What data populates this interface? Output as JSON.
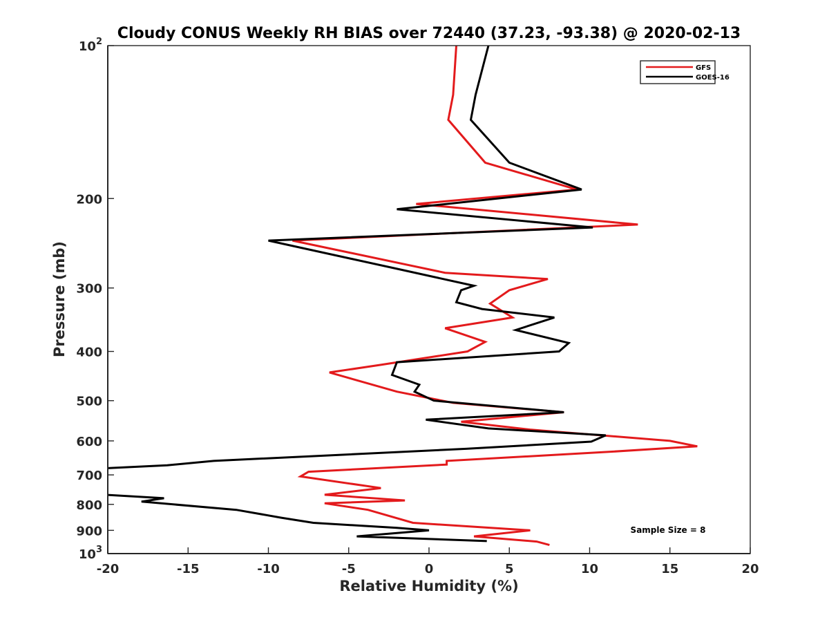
{
  "chart_data": {
    "type": "line",
    "title": "Cloudy CONUS Weekly RH BIAS over 72440 (37.23, -93.38) @ 2020-02-13",
    "xlabel": "Relative Humidity (%)",
    "ylabel": "Pressure (mb)",
    "xlim": [
      -20,
      20
    ],
    "ylim": [
      100,
      1000
    ],
    "yscale": "log",
    "y_reversed": true,
    "x_ticks": [
      "-20",
      "-15",
      "-10",
      "-5",
      "0",
      "5",
      "10",
      "15",
      "20"
    ],
    "y_ticks": [
      {
        "value": 100,
        "base": "10",
        "exp": "2"
      },
      {
        "value": 200,
        "label": "200"
      },
      {
        "value": 300,
        "label": "300"
      },
      {
        "value": 400,
        "label": "400"
      },
      {
        "value": 500,
        "label": "500"
      },
      {
        "value": 600,
        "label": "600"
      },
      {
        "value": 700,
        "label": "700"
      },
      {
        "value": 800,
        "label": "800"
      },
      {
        "value": 900,
        "label": "900"
      },
      {
        "value": 1000,
        "base": "10",
        "exp": "3"
      }
    ],
    "grid": false,
    "legend_position": "top-right",
    "annotation": "Sample Size = 8",
    "series": [
      {
        "name": "GFS",
        "color": "#e31a1c",
        "points": [
          [
            1.7,
            100
          ],
          [
            1.5,
            125
          ],
          [
            1.2,
            140
          ],
          [
            3.5,
            170
          ],
          [
            9.2,
            192
          ],
          [
            -0.8,
            205
          ],
          [
            13.0,
            225
          ],
          [
            -8.5,
            242
          ],
          [
            1.0,
            280
          ],
          [
            7.4,
            288
          ],
          [
            5.0,
            303
          ],
          [
            3.8,
            322
          ],
          [
            5.2,
            343
          ],
          [
            1.0,
            360
          ],
          [
            3.5,
            383
          ],
          [
            2.4,
            400
          ],
          [
            -3.0,
            425
          ],
          [
            -6.2,
            440
          ],
          [
            -2.0,
            480
          ],
          [
            1.5,
            505
          ],
          [
            8.4,
            527
          ],
          [
            2.0,
            550
          ],
          [
            6.3,
            570
          ],
          [
            15.0,
            600
          ],
          [
            16.7,
            615
          ],
          [
            11.4,
            630
          ],
          [
            1.1,
            657
          ],
          [
            1.1,
            668
          ],
          [
            -7.5,
            690
          ],
          [
            -8.0,
            705
          ],
          [
            -3.0,
            743
          ],
          [
            -6.5,
            766
          ],
          [
            -1.5,
            786
          ],
          [
            -6.5,
            796
          ],
          [
            -3.8,
            820
          ],
          [
            -1.0,
            870
          ],
          [
            6.3,
            900
          ],
          [
            2.8,
            925
          ],
          [
            6.7,
            947
          ],
          [
            7.5,
            962
          ]
        ]
      },
      {
        "name": "GOES-16",
        "color": "#000000",
        "points": [
          [
            3.7,
            100
          ],
          [
            2.9,
            125
          ],
          [
            2.6,
            140
          ],
          [
            5.0,
            170
          ],
          [
            9.5,
            192
          ],
          [
            -2.0,
            210
          ],
          [
            10.2,
            228
          ],
          [
            -10.0,
            242
          ],
          [
            -2.0,
            275
          ],
          [
            2.8,
            297
          ],
          [
            2.0,
            303
          ],
          [
            1.7,
            320
          ],
          [
            3.3,
            330
          ],
          [
            7.8,
            343
          ],
          [
            5.4,
            363
          ],
          [
            8.7,
            385
          ],
          [
            8.1,
            400
          ],
          [
            -2.0,
            420
          ],
          [
            -2.3,
            445
          ],
          [
            -0.6,
            465
          ],
          [
            -0.9,
            480
          ],
          [
            0.3,
            500
          ],
          [
            8.4,
            527
          ],
          [
            -0.2,
            545
          ],
          [
            3.7,
            567
          ],
          [
            11.0,
            585
          ],
          [
            10.1,
            602
          ],
          [
            2.3,
            622
          ],
          [
            -13.4,
            657
          ],
          [
            -16.3,
            670
          ],
          [
            -20.5,
            680
          ],
          [
            -20.5,
            765
          ],
          [
            -16.5,
            778
          ],
          [
            -17.9,
            790
          ],
          [
            -12.0,
            820
          ],
          [
            -9.2,
            850
          ],
          [
            -7.2,
            870
          ],
          [
            -2.0,
            890
          ],
          [
            0.0,
            900
          ],
          [
            -4.5,
            925
          ],
          [
            3.6,
            945
          ]
        ]
      }
    ]
  }
}
